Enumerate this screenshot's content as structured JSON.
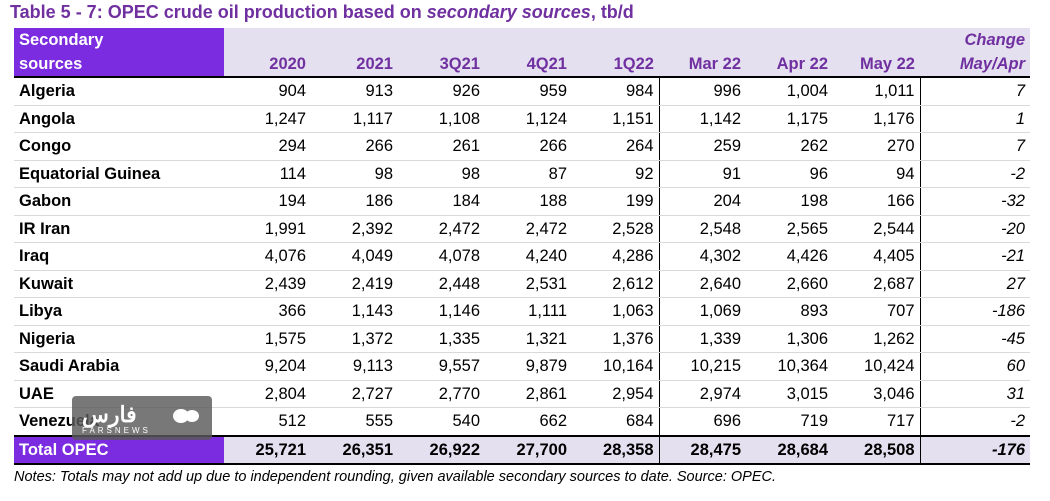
{
  "title_prefix": "Table 5 - 7: OPEC crude oil production based on ",
  "title_italic": "secondary sources",
  "title_suffix": ", tb/d",
  "header": {
    "corner_line1": "Secondary",
    "corner_line2": "sources",
    "change_line1": "Change",
    "change_line2": "May/Apr",
    "columns": [
      "2020",
      "2021",
      "3Q21",
      "4Q21",
      "1Q22",
      "Mar 22",
      "Apr 22",
      "May 22"
    ]
  },
  "rows": [
    {
      "name": "Algeria",
      "values": [
        "904",
        "913",
        "926",
        "959",
        "984",
        "996",
        "1,004",
        "1,011"
      ],
      "change": "7"
    },
    {
      "name": "Angola",
      "values": [
        "1,247",
        "1,117",
        "1,108",
        "1,124",
        "1,151",
        "1,142",
        "1,175",
        "1,176"
      ],
      "change": "1"
    },
    {
      "name": "Congo",
      "values": [
        "294",
        "266",
        "261",
        "266",
        "264",
        "259",
        "262",
        "270"
      ],
      "change": "7"
    },
    {
      "name": "Equatorial Guinea",
      "values": [
        "114",
        "98",
        "98",
        "87",
        "92",
        "91",
        "96",
        "94"
      ],
      "change": "-2"
    },
    {
      "name": "Gabon",
      "values": [
        "194",
        "186",
        "184",
        "188",
        "199",
        "204",
        "198",
        "166"
      ],
      "change": "-32"
    },
    {
      "name": "IR Iran",
      "values": [
        "1,991",
        "2,392",
        "2,472",
        "2,472",
        "2,528",
        "2,548",
        "2,565",
        "2,544"
      ],
      "change": "-20"
    },
    {
      "name": "Iraq",
      "values": [
        "4,076",
        "4,049",
        "4,078",
        "4,240",
        "4,286",
        "4,302",
        "4,426",
        "4,405"
      ],
      "change": "-21"
    },
    {
      "name": "Kuwait",
      "values": [
        "2,439",
        "2,419",
        "2,448",
        "2,531",
        "2,612",
        "2,640",
        "2,660",
        "2,687"
      ],
      "change": "27"
    },
    {
      "name": "Libya",
      "values": [
        "366",
        "1,143",
        "1,146",
        "1,111",
        "1,063",
        "1,069",
        "893",
        "707"
      ],
      "change": "-186"
    },
    {
      "name": "Nigeria",
      "values": [
        "1,575",
        "1,372",
        "1,335",
        "1,321",
        "1,376",
        "1,339",
        "1,306",
        "1,262"
      ],
      "change": "-45"
    },
    {
      "name": "Saudi Arabia",
      "values": [
        "9,204",
        "9,113",
        "9,557",
        "9,879",
        "10,164",
        "10,215",
        "10,364",
        "10,424"
      ],
      "change": "60"
    },
    {
      "name": "UAE",
      "values": [
        "2,804",
        "2,727",
        "2,770",
        "2,861",
        "2,954",
        "2,974",
        "3,015",
        "3,046"
      ],
      "change": "31"
    },
    {
      "name": "Venezuela",
      "values": [
        "512",
        "555",
        "540",
        "662",
        "684",
        "696",
        "719",
        "717"
      ],
      "change": "-2"
    }
  ],
  "total": {
    "name": "Total  OPEC",
    "values": [
      "25,721",
      "26,351",
      "26,922",
      "27,700",
      "28,358",
      "28,475",
      "28,684",
      "28,508"
    ],
    "change": "-176"
  },
  "notes": "Notes: Totals may not add up due to independent rounding, given available secondary sources to date. Source: OPEC.",
  "watermark": {
    "logo_text": "فارس",
    "subtitle": "FARSNEWS"
  },
  "colors": {
    "accent": "#7b2be0",
    "header_bg": "#e4e0f0",
    "title": "#7030a0"
  }
}
